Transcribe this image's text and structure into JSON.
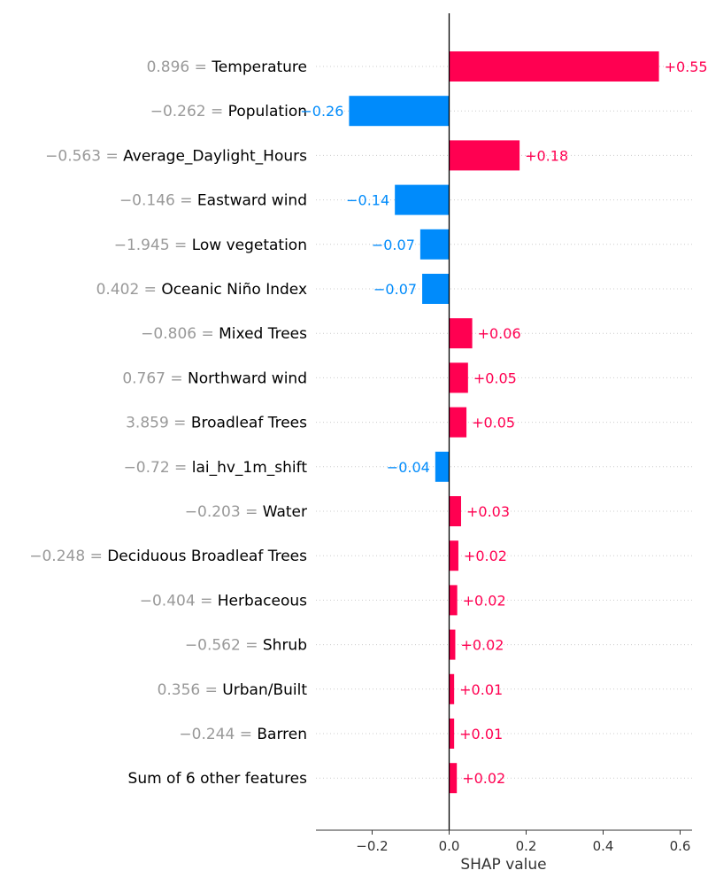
{
  "chart_data": {
    "type": "bar",
    "orientation": "horizontal",
    "xlabel": "SHAP value",
    "xlim": [
      -0.35,
      0.63
    ],
    "xticks": [
      "−0.2",
      "0.0",
      "0.2",
      "0.4",
      "0.6"
    ],
    "xtick_values": [
      -0.2,
      0.0,
      0.2,
      0.4,
      0.6
    ],
    "grid": "dotted horizontal row guides",
    "colors": {
      "positive": "#ff0051",
      "negative": "#008bfb",
      "feature_value": "#999999"
    },
    "rows": [
      {
        "value_text": "0.896",
        "feature": "Temperature",
        "shap": 0.545,
        "label": "+0.55"
      },
      {
        "value_text": "−0.262",
        "feature": "Population",
        "shap": -0.26,
        "label": "−0.26"
      },
      {
        "value_text": "−0.563",
        "feature": "Average_Daylight_Hours",
        "shap": 0.183,
        "label": "+0.18"
      },
      {
        "value_text": "−0.146",
        "feature": "Eastward wind",
        "shap": -0.141,
        "label": "−0.14"
      },
      {
        "value_text": "−1.945",
        "feature": "Low vegetation",
        "shap": -0.075,
        "label": "−0.07"
      },
      {
        "value_text": "0.402",
        "feature": "Oceanic Niño Index",
        "shap": -0.07,
        "label": "−0.07"
      },
      {
        "value_text": "−0.806",
        "feature": "Mixed Trees",
        "shap": 0.06,
        "label": "+0.06"
      },
      {
        "value_text": "0.767",
        "feature": "Northward wind",
        "shap": 0.049,
        "label": "+0.05"
      },
      {
        "value_text": "3.859",
        "feature": "Broadleaf Trees",
        "shap": 0.045,
        "label": "+0.05"
      },
      {
        "value_text": "−0.72",
        "feature": "lai_hv_1m_shift",
        "shap": -0.036,
        "label": "−0.04"
      },
      {
        "value_text": "−0.203",
        "feature": "Water",
        "shap": 0.031,
        "label": "+0.03"
      },
      {
        "value_text": "−0.248",
        "feature": "Deciduous Broadleaf Trees",
        "shap": 0.024,
        "label": "+0.02"
      },
      {
        "value_text": "−0.404",
        "feature": "Herbaceous",
        "shap": 0.021,
        "label": "+0.02"
      },
      {
        "value_text": "−0.562",
        "feature": "Shrub",
        "shap": 0.016,
        "label": "+0.02"
      },
      {
        "value_text": "0.356",
        "feature": "Urban/Built",
        "shap": 0.013,
        "label": "+0.01"
      },
      {
        "value_text": "−0.244",
        "feature": "Barren",
        "shap": 0.013,
        "label": "+0.01"
      },
      {
        "value_text": "",
        "feature": "Sum of 6 other features",
        "shap": 0.02,
        "label": "+0.02"
      }
    ]
  }
}
